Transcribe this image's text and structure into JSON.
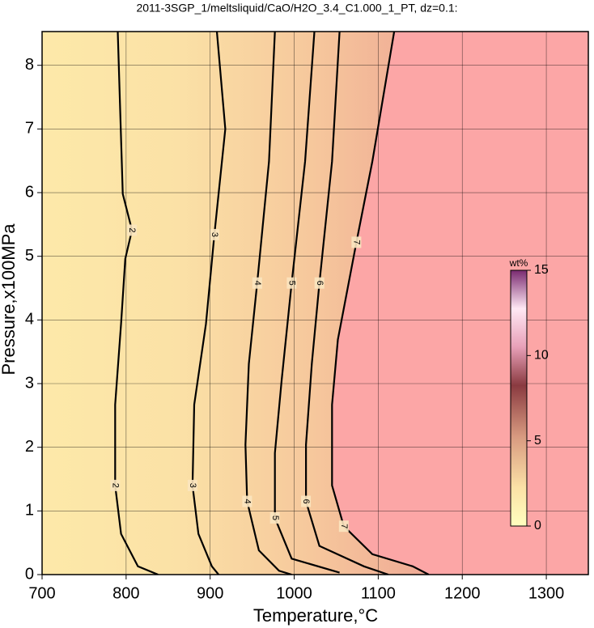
{
  "chart_data": {
    "type": "contour",
    "title": "2011-3SGP_1/meltsliquid/CaO/H2O_3.4_C1.000_1_PT, dz=0.1:",
    "x_label": "Temperature,°C",
    "y_label": "Pressure,x100MPa",
    "xlim": [
      700,
      1350
    ],
    "xticks": [
      700,
      800,
      900,
      1000,
      1100,
      1200,
      1300
    ],
    "ylim": [
      0,
      8.53
    ],
    "yticks": [
      0,
      1,
      2,
      3,
      4,
      5,
      6,
      7,
      8
    ],
    "grid": true,
    "contours": [
      {
        "level": 2,
        "x": [
          838,
          814,
          794,
          787,
          787,
          794,
          799,
          807,
          796,
          790
        ],
        "y": [
          0,
          0.13,
          0.64,
          1.4,
          2.67,
          3.94,
          4.96,
          5.41,
          5.98,
          8.53
        ]
      },
      {
        "level": 3,
        "x": [
          910,
          902,
          886,
          879,
          881,
          895,
          905,
          918,
          908
        ],
        "y": [
          0,
          0.13,
          0.64,
          1.4,
          2.67,
          3.94,
          5.34,
          7.0,
          8.53
        ]
      },
      {
        "level": 4,
        "x": [
          997,
          982,
          958,
          944,
          942,
          946,
          956,
          970,
          977
        ],
        "y": [
          0,
          0.06,
          0.38,
          1.15,
          2.04,
          3.31,
          4.58,
          6.49,
          8.53
        ]
      },
      {
        "level": 5,
        "x": [
          1054,
          997,
          977,
          977,
          985,
          997,
          1013,
          1024
        ],
        "y": [
          0.03,
          0.25,
          0.89,
          1.91,
          3.05,
          4.58,
          6.49,
          8.53
        ]
      },
      {
        "level": 6,
        "x": [
          1112,
          1083,
          1030,
          1014,
          1014,
          1021,
          1030,
          1045,
          1054
        ],
        "y": [
          0,
          0.13,
          0.45,
          1.15,
          2.04,
          3.31,
          4.58,
          6.49,
          8.53
        ]
      },
      {
        "level": 7,
        "x": [
          1160,
          1141,
          1093,
          1059,
          1045,
          1045,
          1052,
          1074,
          1093,
          1119
        ],
        "y": [
          0,
          0.13,
          0.32,
          0.76,
          1.4,
          2.67,
          3.69,
          5.22,
          6.49,
          8.53
        ]
      }
    ],
    "colorbar": {
      "label": "wt%",
      "lim": [
        0,
        15
      ],
      "ticks": [
        0,
        5,
        10,
        15
      ]
    }
  }
}
